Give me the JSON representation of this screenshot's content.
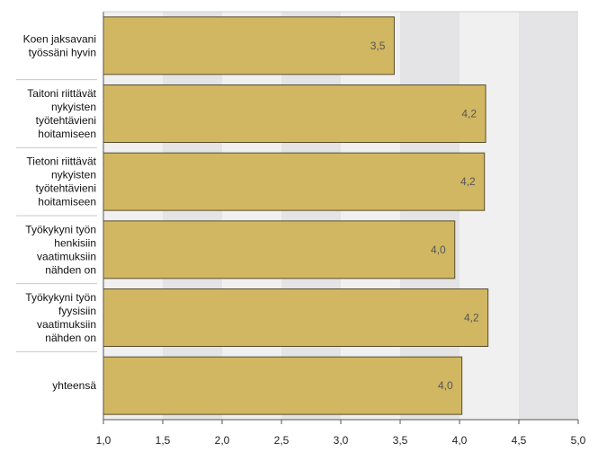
{
  "chart_data": {
    "type": "bar",
    "orientation": "horizontal",
    "categories": [
      [
        "Koen jaksavani",
        "työssäni hyvin"
      ],
      [
        "Taitoni riittävät",
        "nykyisten",
        "työtehtävieni",
        "hoitamiseen"
      ],
      [
        "Tietoni riittävät",
        "nykyisten",
        "työtehtävieni",
        "hoitamiseen"
      ],
      [
        "Työkykyni työn",
        "henkisiin",
        "vaatimuksiin",
        "nähden on"
      ],
      [
        "Työkykyni työn",
        "fyysisiin",
        "vaatimuksiin",
        "nähden on"
      ],
      [
        "yhteensä"
      ]
    ],
    "values": [
      3.45,
      4.22,
      4.21,
      3.96,
      4.24,
      4.02
    ],
    "value_labels": [
      "3,5",
      "4,2",
      "4,2",
      "4,0",
      "4,2",
      "4,0"
    ],
    "xlim": [
      1.0,
      5.0
    ],
    "xticks": [
      1.0,
      1.5,
      2.0,
      2.5,
      3.0,
      3.5,
      4.0,
      4.5,
      5.0
    ],
    "xtick_labels": [
      "1,0",
      "1,5",
      "2,0",
      "2,5",
      "3,0",
      "3,5",
      "4,0",
      "4,5",
      "5,0"
    ],
    "title": "",
    "xlabel": "",
    "ylabel": "",
    "colors": {
      "bar_fill": "#d1b761",
      "bar_stroke": "#5a4e2c",
      "band_light": "#f0f0f1",
      "band_dark": "#e4e4e6",
      "axis": "#555555"
    }
  }
}
